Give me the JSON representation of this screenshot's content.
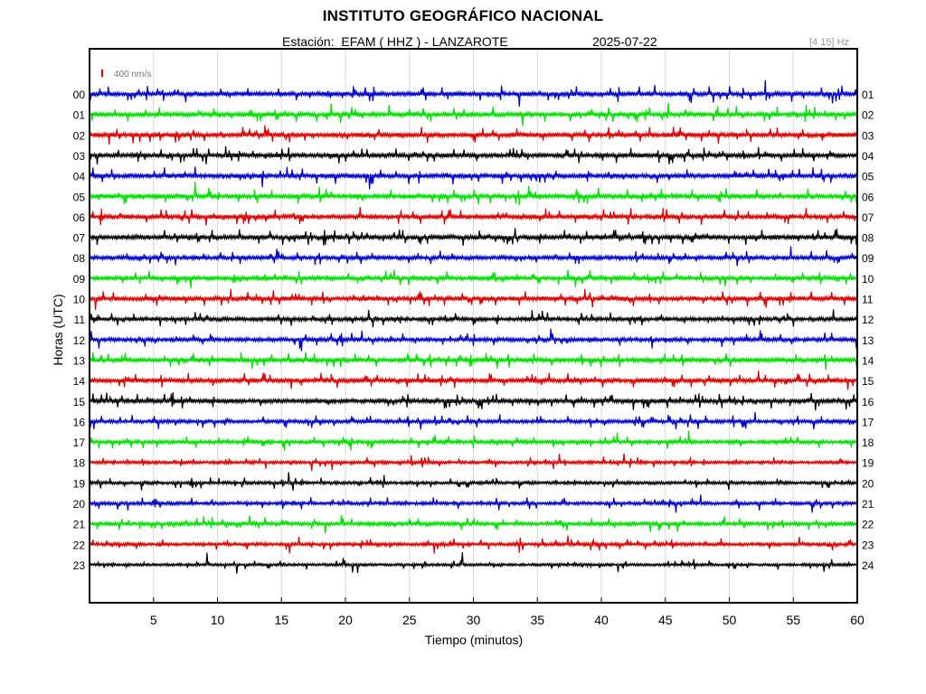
{
  "header": {
    "title": "INSTITUTO GEOGRÁFICO NACIONAL",
    "station_label": "Estación:  EFAM ( HHZ ) - LANZAROTE",
    "date": "2025-07-22",
    "frequency_band": "[4 15] Hz"
  },
  "colors": {
    "blue": "#0000cc",
    "green": "#00e000",
    "red": "#dd0000",
    "black": "#000000",
    "grid": "#d8d8d8",
    "frame": "#000000",
    "scale_bar": "#dd0000"
  },
  "chart_data": {
    "type": "line",
    "title": "INSTITUTO GEOGRÁFICO NACIONAL",
    "subtitle": "Estación:  EFAM ( HHZ ) - LANZAROTE",
    "xlabel": "Tiempo (minutos)",
    "ylabel": "Horas (UTC)",
    "xlim": [
      0,
      60
    ],
    "xticks": [
      5,
      10,
      15,
      20,
      25,
      30,
      35,
      40,
      45,
      50,
      55,
      60
    ],
    "grid": true,
    "scale_bar_label": "400 nm/s",
    "left_hour_labels": [
      "00",
      "01",
      "02",
      "03",
      "04",
      "05",
      "06",
      "07",
      "08",
      "09",
      "10",
      "11",
      "12",
      "13",
      "14",
      "15",
      "16",
      "17",
      "18",
      "19",
      "20",
      "21",
      "22",
      "23"
    ],
    "right_hour_labels": [
      "01",
      "02",
      "03",
      "04",
      "05",
      "06",
      "07",
      "08",
      "09",
      "10",
      "11",
      "12",
      "13",
      "14",
      "15",
      "16",
      "17",
      "18",
      "19",
      "20",
      "21",
      "22",
      "23",
      "24"
    ],
    "trace_color_cycle": [
      "blue",
      "green",
      "red",
      "black"
    ],
    "trace_activity": [
      1.0,
      1.0,
      1.0,
      1.0,
      1.0,
      1.0,
      1.0,
      1.0,
      0.9,
      0.9,
      1.0,
      0.9,
      0.9,
      1.0,
      1.0,
      1.0,
      0.8,
      0.8,
      0.7,
      0.7,
      0.75,
      0.8,
      0.75,
      0.6
    ]
  }
}
